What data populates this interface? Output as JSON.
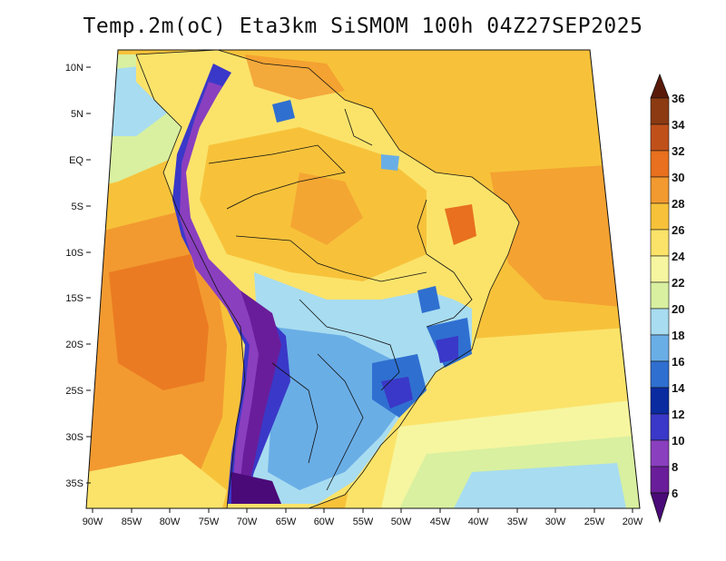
{
  "title": "Temp.2m(oC) Eta3km SiSMOM 100h 04Z27SEP2025",
  "map": {
    "lat_labels": [
      "10N",
      "5N",
      "EQ",
      "5S",
      "10S",
      "15S",
      "20S",
      "25S",
      "30S",
      "35S"
    ],
    "lon_labels": [
      "90W",
      "85W",
      "80W",
      "75W",
      "70W",
      "65W",
      "60W",
      "55W",
      "50W",
      "45W",
      "40W",
      "35W",
      "30W",
      "25W",
      "20W"
    ]
  },
  "colorbar": {
    "labels": [
      "36",
      "34",
      "32",
      "30",
      "28",
      "26",
      "24",
      "22",
      "20",
      "18",
      "16",
      "14",
      "12",
      "10",
      "8",
      "6"
    ],
    "colors": [
      "#5a1a0a",
      "#8b3a12",
      "#c0501a",
      "#e8701e",
      "#f29a30",
      "#f7c23a",
      "#fbe36a",
      "#f6f6a0",
      "#d8f0a0",
      "#a8dcf0",
      "#6aaee6",
      "#2f6fd0",
      "#0a2aa0",
      "#3a38c8",
      "#8a3fbf",
      "#6a1d9a",
      "#4a0a78"
    ]
  },
  "colors": {
    "ocean_warm": "#f7c23a",
    "ocean_cool": "#f29a30",
    "ocean_south": "#fbe36a"
  }
}
